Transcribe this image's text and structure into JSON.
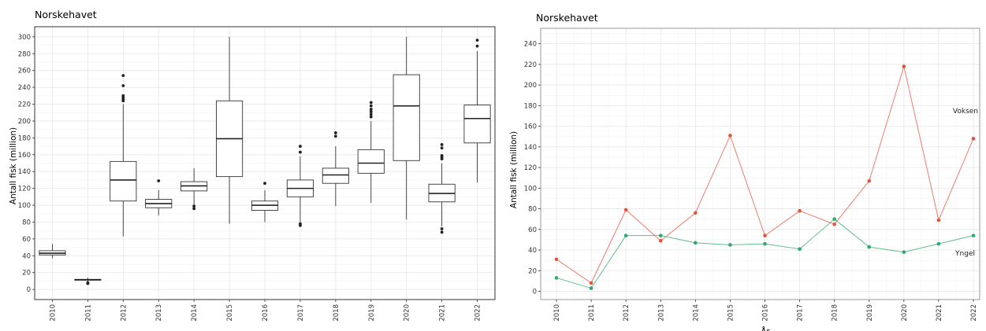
{
  "chart_data": [
    {
      "type": "box",
      "title": "Norskehavet",
      "xlabel": "",
      "ylabel": "Antall fisk (million)",
      "ylim": [
        -12,
        312
      ],
      "yticks": [
        0,
        20,
        40,
        60,
        80,
        100,
        120,
        140,
        160,
        180,
        200,
        220,
        240,
        260,
        280,
        300
      ],
      "categories": [
        "2010",
        "2011",
        "2012",
        "2013",
        "2014",
        "2015",
        "2016",
        "2017",
        "2018",
        "2019",
        "2020",
        "2021",
        "2022"
      ],
      "boxes": [
        {
          "year": "2010",
          "whislo": 37,
          "q1": 41,
          "med": 43,
          "q3": 46,
          "whishi": 54,
          "fliers": []
        },
        {
          "year": "2011",
          "whislo": 10,
          "q1": 11,
          "med": 11.5,
          "q3": 12,
          "whishi": 14,
          "fliers": [
            8,
            7
          ]
        },
        {
          "year": "2012",
          "whislo": 63,
          "q1": 105,
          "med": 130,
          "q3": 152,
          "whishi": 220,
          "fliers": [
            224,
            226,
            228,
            230,
            242,
            254
          ]
        },
        {
          "year": "2013",
          "whislo": 88,
          "q1": 97,
          "med": 102,
          "q3": 107,
          "whishi": 118,
          "fliers": [
            129
          ]
        },
        {
          "year": "2014",
          "whislo": 100,
          "q1": 117,
          "med": 123,
          "q3": 128,
          "whishi": 144,
          "fliers": [
            96,
            99
          ]
        },
        {
          "year": "2015",
          "whislo": 78,
          "q1": 134,
          "med": 179,
          "q3": 224,
          "whishi": 300,
          "fliers": []
        },
        {
          "year": "2016",
          "whislo": 80,
          "q1": 94,
          "med": 100,
          "q3": 105,
          "whishi": 118,
          "fliers": [
            126
          ]
        },
        {
          "year": "2017",
          "whislo": 80,
          "q1": 110,
          "med": 120,
          "q3": 130,
          "whishi": 158,
          "fliers": [
            76,
            78,
            163,
            170
          ]
        },
        {
          "year": "2018",
          "whislo": 99,
          "q1": 126,
          "med": 136,
          "q3": 144,
          "whishi": 170,
          "fliers": [
            182,
            186
          ]
        },
        {
          "year": "2019",
          "whislo": 103,
          "q1": 138,
          "med": 150,
          "q3": 166,
          "whishi": 200,
          "fliers": [
            205,
            208,
            211,
            214,
            218,
            222
          ]
        },
        {
          "year": "2020",
          "whislo": 83,
          "q1": 153,
          "med": 218,
          "q3": 255,
          "whishi": 300,
          "fliers": []
        },
        {
          "year": "2021",
          "whislo": 75,
          "q1": 104,
          "med": 114,
          "q3": 125,
          "whishi": 150,
          "fliers": [
            68,
            72,
            155,
            157,
            159,
            168,
            172
          ]
        },
        {
          "year": "2022",
          "whislo": 127,
          "q1": 174,
          "med": 203,
          "q3": 219,
          "whishi": 283,
          "fliers": [
            289,
            296
          ]
        }
      ]
    },
    {
      "type": "line",
      "title": "Norskehavet",
      "xlabel": "År",
      "ylabel": "Antall fisk (million)",
      "ylim": [
        -8,
        255
      ],
      "yticks": [
        0,
        20,
        40,
        60,
        80,
        100,
        120,
        140,
        160,
        180,
        200,
        220,
        240
      ],
      "x": [
        "2010",
        "2011",
        "2012",
        "2013",
        "2014",
        "2015",
        "2016",
        "2017",
        "2018",
        "2019",
        "2020",
        "2021",
        "2022"
      ],
      "series": [
        {
          "name": "Voksen",
          "color": "#e8513c",
          "values": [
            31,
            8,
            79,
            49,
            76,
            151,
            54,
            78,
            65,
            107,
            218,
            69,
            148
          ]
        },
        {
          "name": "Yngel",
          "color": "#2ea86b",
          "values": [
            13,
            3,
            54,
            54,
            47,
            45,
            46,
            41,
            70,
            43,
            38,
            46,
            54
          ]
        }
      ]
    }
  ]
}
